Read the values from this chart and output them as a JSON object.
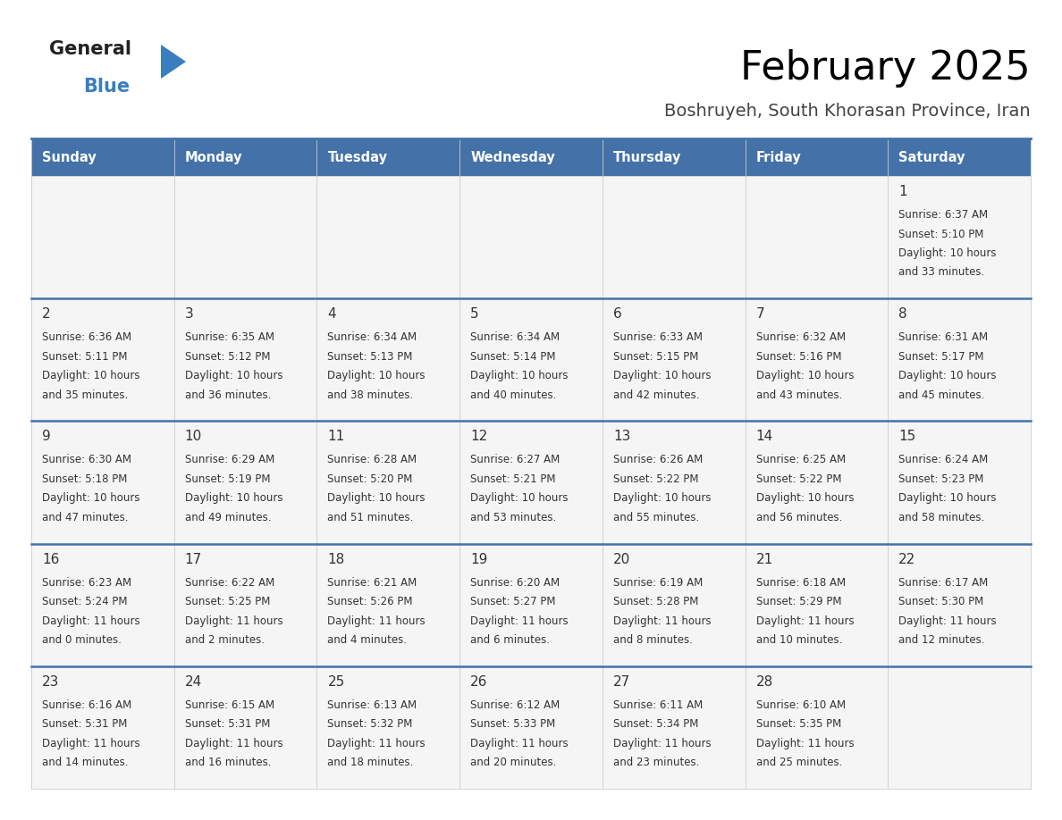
{
  "title": "February 2025",
  "subtitle": "Boshruyeh, South Khorasan Province, Iran",
  "header_bg": "#4472a8",
  "header_text": "#ffffff",
  "cell_bg": "#f5f5f5",
  "separator_color": "#4472a8",
  "grid_color": "#cccccc",
  "text_color": "#333333",
  "days_of_week": [
    "Sunday",
    "Monday",
    "Tuesday",
    "Wednesday",
    "Thursday",
    "Friday",
    "Saturday"
  ],
  "calendar_data": [
    [
      null,
      null,
      null,
      null,
      null,
      null,
      {
        "day": 1,
        "sunrise": "6:37 AM",
        "sunset": "5:10 PM",
        "daylight_line1": "10 hours",
        "daylight_line2": "and 33 minutes."
      }
    ],
    [
      {
        "day": 2,
        "sunrise": "6:36 AM",
        "sunset": "5:11 PM",
        "daylight_line1": "10 hours",
        "daylight_line2": "and 35 minutes."
      },
      {
        "day": 3,
        "sunrise": "6:35 AM",
        "sunset": "5:12 PM",
        "daylight_line1": "10 hours",
        "daylight_line2": "and 36 minutes."
      },
      {
        "day": 4,
        "sunrise": "6:34 AM",
        "sunset": "5:13 PM",
        "daylight_line1": "10 hours",
        "daylight_line2": "and 38 minutes."
      },
      {
        "day": 5,
        "sunrise": "6:34 AM",
        "sunset": "5:14 PM",
        "daylight_line1": "10 hours",
        "daylight_line2": "and 40 minutes."
      },
      {
        "day": 6,
        "sunrise": "6:33 AM",
        "sunset": "5:15 PM",
        "daylight_line1": "10 hours",
        "daylight_line2": "and 42 minutes."
      },
      {
        "day": 7,
        "sunrise": "6:32 AM",
        "sunset": "5:16 PM",
        "daylight_line1": "10 hours",
        "daylight_line2": "and 43 minutes."
      },
      {
        "day": 8,
        "sunrise": "6:31 AM",
        "sunset": "5:17 PM",
        "daylight_line1": "10 hours",
        "daylight_line2": "and 45 minutes."
      }
    ],
    [
      {
        "day": 9,
        "sunrise": "6:30 AM",
        "sunset": "5:18 PM",
        "daylight_line1": "10 hours",
        "daylight_line2": "and 47 minutes."
      },
      {
        "day": 10,
        "sunrise": "6:29 AM",
        "sunset": "5:19 PM",
        "daylight_line1": "10 hours",
        "daylight_line2": "and 49 minutes."
      },
      {
        "day": 11,
        "sunrise": "6:28 AM",
        "sunset": "5:20 PM",
        "daylight_line1": "10 hours",
        "daylight_line2": "and 51 minutes."
      },
      {
        "day": 12,
        "sunrise": "6:27 AM",
        "sunset": "5:21 PM",
        "daylight_line1": "10 hours",
        "daylight_line2": "and 53 minutes."
      },
      {
        "day": 13,
        "sunrise": "6:26 AM",
        "sunset": "5:22 PM",
        "daylight_line1": "10 hours",
        "daylight_line2": "and 55 minutes."
      },
      {
        "day": 14,
        "sunrise": "6:25 AM",
        "sunset": "5:22 PM",
        "daylight_line1": "10 hours",
        "daylight_line2": "and 56 minutes."
      },
      {
        "day": 15,
        "sunrise": "6:24 AM",
        "sunset": "5:23 PM",
        "daylight_line1": "10 hours",
        "daylight_line2": "and 58 minutes."
      }
    ],
    [
      {
        "day": 16,
        "sunrise": "6:23 AM",
        "sunset": "5:24 PM",
        "daylight_line1": "11 hours",
        "daylight_line2": "and 0 minutes."
      },
      {
        "day": 17,
        "sunrise": "6:22 AM",
        "sunset": "5:25 PM",
        "daylight_line1": "11 hours",
        "daylight_line2": "and 2 minutes."
      },
      {
        "day": 18,
        "sunrise": "6:21 AM",
        "sunset": "5:26 PM",
        "daylight_line1": "11 hours",
        "daylight_line2": "and 4 minutes."
      },
      {
        "day": 19,
        "sunrise": "6:20 AM",
        "sunset": "5:27 PM",
        "daylight_line1": "11 hours",
        "daylight_line2": "and 6 minutes."
      },
      {
        "day": 20,
        "sunrise": "6:19 AM",
        "sunset": "5:28 PM",
        "daylight_line1": "11 hours",
        "daylight_line2": "and 8 minutes."
      },
      {
        "day": 21,
        "sunrise": "6:18 AM",
        "sunset": "5:29 PM",
        "daylight_line1": "11 hours",
        "daylight_line2": "and 10 minutes."
      },
      {
        "day": 22,
        "sunrise": "6:17 AM",
        "sunset": "5:30 PM",
        "daylight_line1": "11 hours",
        "daylight_line2": "and 12 minutes."
      }
    ],
    [
      {
        "day": 23,
        "sunrise": "6:16 AM",
        "sunset": "5:31 PM",
        "daylight_line1": "11 hours",
        "daylight_line2": "and 14 minutes."
      },
      {
        "day": 24,
        "sunrise": "6:15 AM",
        "sunset": "5:31 PM",
        "daylight_line1": "11 hours",
        "daylight_line2": "and 16 minutes."
      },
      {
        "day": 25,
        "sunrise": "6:13 AM",
        "sunset": "5:32 PM",
        "daylight_line1": "11 hours",
        "daylight_line2": "and 18 minutes."
      },
      {
        "day": 26,
        "sunrise": "6:12 AM",
        "sunset": "5:33 PM",
        "daylight_line1": "11 hours",
        "daylight_line2": "and 20 minutes."
      },
      {
        "day": 27,
        "sunrise": "6:11 AM",
        "sunset": "5:34 PM",
        "daylight_line1": "11 hours",
        "daylight_line2": "and 23 minutes."
      },
      {
        "day": 28,
        "sunrise": "6:10 AM",
        "sunset": "5:35 PM",
        "daylight_line1": "11 hours",
        "daylight_line2": "and 25 minutes."
      },
      null
    ]
  ]
}
